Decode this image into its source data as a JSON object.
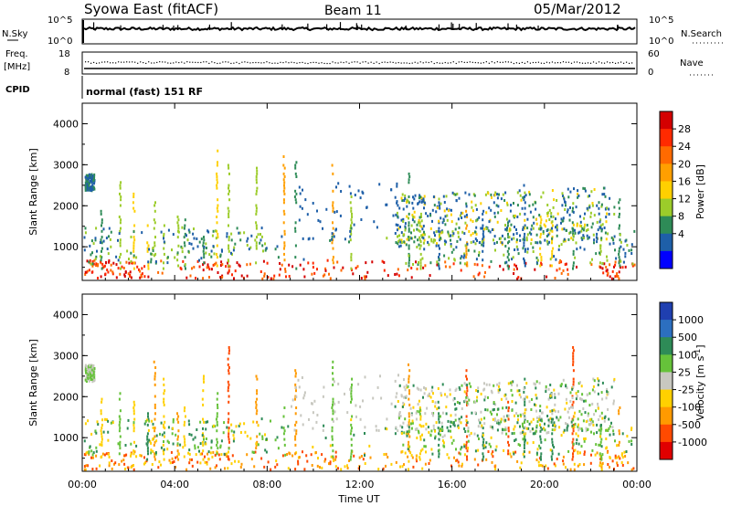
{
  "header": {
    "station": "Syowa East (fitACF)",
    "beam": "Beam 11",
    "date": "05/Mar/2012"
  },
  "top_panels": {
    "nsky_label": "N.Sky",
    "nsky_ticks": [
      "10^5",
      "10^0"
    ],
    "nsearch_label": "N.Search",
    "nsearch_ticks": [
      "10^5",
      "10^0"
    ],
    "freq_label_line1": "Freq.",
    "freq_label_line2": "[MHz]",
    "freq_ticks": [
      "18",
      "8"
    ],
    "nave_label": "Nave",
    "nave_ticks": [
      "60",
      "0"
    ],
    "cpid_label": "CPID",
    "cpid_text": "normal (fast) 151 RF"
  },
  "chart_data": [
    {
      "type": "heatmap",
      "panel": "power",
      "ylabel": "Slant Range [km]",
      "yticks": [
        "1000",
        "2000",
        "3000",
        "4000"
      ],
      "ylim": [
        180,
        4500
      ],
      "xticks": [
        "00:00",
        "04:00",
        "08:00",
        "12:00",
        "16:00",
        "20:00",
        "00:00"
      ],
      "xlim_hours": [
        0,
        24
      ],
      "colorbar": {
        "label": "Power [dB]",
        "ticks": [
          "28",
          "24",
          "20",
          "16",
          "12",
          "8",
          "4"
        ],
        "values": [
          28,
          24,
          20,
          16,
          12,
          8,
          4
        ],
        "colors": [
          "#d40000",
          "#ff2a00",
          "#ff6a00",
          "#ff9f00",
          "#ffd000",
          "#9ccc2a",
          "#2e8b57",
          "#1e5fa8",
          "#0000ff"
        ]
      }
    },
    {
      "type": "heatmap",
      "panel": "velocity",
      "ylabel": "Slant Range [km]",
      "yticks": [
        "1000",
        "2000",
        "3000",
        "4000"
      ],
      "ylim": [
        180,
        4500
      ],
      "xticks": [
        "00:00",
        "04:00",
        "08:00",
        "12:00",
        "16:00",
        "20:00",
        "00:00"
      ],
      "xlim_hours": [
        0,
        24
      ],
      "xlabel": "Time UT",
      "colorbar": {
        "label": "Velocity [m s",
        "label_sup": "-1",
        "label_end": "]",
        "ticks": [
          "1000",
          "500",
          "100",
          "25",
          "-25",
          "-100",
          "-500",
          "-1000"
        ],
        "values": [
          1000,
          500,
          100,
          25,
          -25,
          -100,
          -500,
          -1000
        ],
        "colors": [
          "#1f3fb0",
          "#2c6fc0",
          "#2e8b57",
          "#66c23a",
          "#c8c8c0",
          "#ffd000",
          "#ff9a00",
          "#ff4a00",
          "#e00000"
        ]
      }
    }
  ]
}
